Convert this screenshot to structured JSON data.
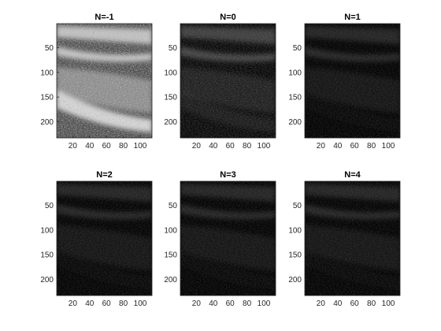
{
  "figure": {
    "type": "image-grid",
    "layout": {
      "rows": 2,
      "cols": 3
    },
    "background": "#ffffff"
  },
  "chart_data": [
    {
      "type": "heatmap",
      "title": "N=-1",
      "brightness": "high",
      "xlim": [
        1,
        114
      ],
      "ylim": [
        1,
        233
      ],
      "xticks": [
        20,
        40,
        60,
        80,
        100
      ],
      "yticks": [
        50,
        100,
        150,
        200
      ],
      "colormap": "gray"
    },
    {
      "type": "heatmap",
      "title": "N=0",
      "brightness": "medium",
      "xlim": [
        1,
        114
      ],
      "ylim": [
        1,
        233
      ],
      "xticks": [
        20,
        40,
        60,
        80,
        100
      ],
      "yticks": [
        50,
        100,
        150,
        200
      ],
      "colormap": "gray"
    },
    {
      "type": "heatmap",
      "title": "N=1",
      "brightness": "low",
      "xlim": [
        1,
        114
      ],
      "ylim": [
        1,
        233
      ],
      "xticks": [
        20,
        40,
        60,
        80,
        100
      ],
      "yticks": [
        50,
        100,
        150,
        200
      ],
      "colormap": "gray"
    },
    {
      "type": "heatmap",
      "title": "N=2",
      "brightness": "low",
      "xlim": [
        1,
        114
      ],
      "ylim": [
        1,
        233
      ],
      "xticks": [
        20,
        40,
        60,
        80,
        100
      ],
      "yticks": [
        50,
        100,
        150,
        200
      ],
      "colormap": "gray"
    },
    {
      "type": "heatmap",
      "title": "N=3",
      "brightness": "low",
      "xlim": [
        1,
        114
      ],
      "ylim": [
        1,
        233
      ],
      "xticks": [
        20,
        40,
        60,
        80,
        100
      ],
      "yticks": [
        50,
        100,
        150,
        200
      ],
      "colormap": "gray"
    },
    {
      "type": "heatmap",
      "title": "N=4",
      "brightness": "low",
      "xlim": [
        1,
        114
      ],
      "ylim": [
        1,
        233
      ],
      "xticks": [
        20,
        40,
        60,
        80,
        100
      ],
      "yticks": [
        50,
        100,
        150,
        200
      ],
      "colormap": "gray"
    }
  ]
}
